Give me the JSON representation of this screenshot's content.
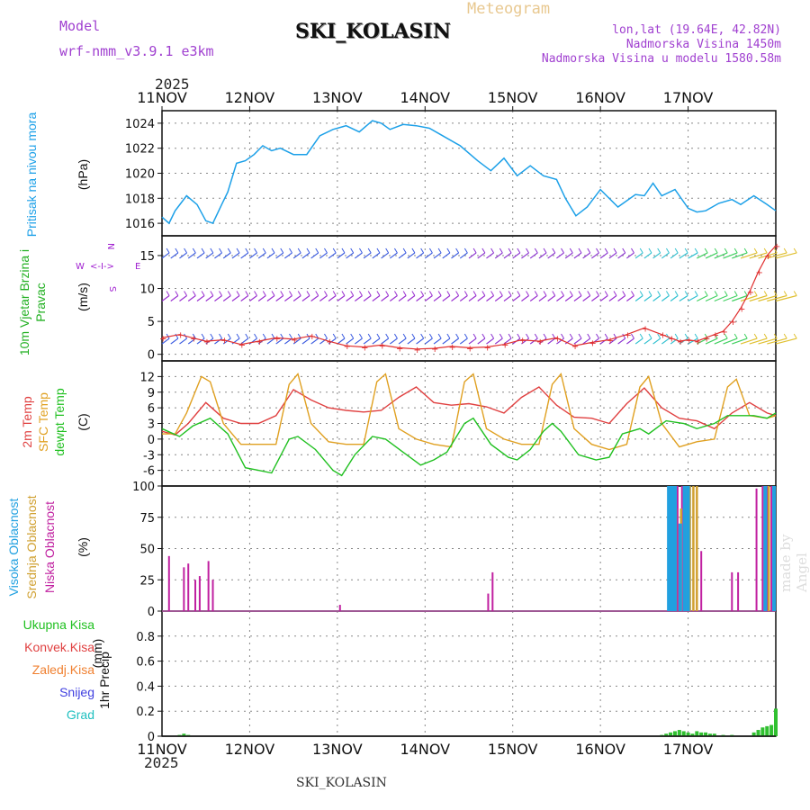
{
  "header": {
    "model_label": "Model",
    "model_name": "wrf-nmm_v3.9.1  e3km",
    "station": "SKI_KOLASIN",
    "meteogram": "Meteogram",
    "lonlat": "lon,lat (19.64E, 42.82N)",
    "elevation": "Nadmorska Visina 1450m",
    "model_elevation": "Nadmorska Visina u modelu 1580.58m",
    "year_top": "2025",
    "year_bottom": "2025",
    "footer_station": "SKI_KOLASIN",
    "credit": "made by Angel"
  },
  "colors": {
    "pressure": "#1ca0e8",
    "wind_purple": "#a020d0",
    "wind_red": "#e03030",
    "temp2m": "#e04040",
    "sfc": "#e0a020",
    "dewpt": "#20c020",
    "visoka": "#20a0e0",
    "srednja": "#d0a030",
    "niska": "#c020a0",
    "precip": "#30c030"
  },
  "chart_data": [
    {
      "type": "line",
      "panel": "pressure",
      "ylabel": "Pritisak na nivou mora",
      "units": "(hPa)",
      "ylim": [
        1015,
        1025
      ],
      "yticks": [
        1016,
        1018,
        1020,
        1022,
        1024
      ],
      "xticks": [
        "11NOV",
        "12NOV",
        "13NOV",
        "14NOV",
        "15NOV",
        "16NOV",
        "17NOV"
      ],
      "series": [
        {
          "name": "Pritisak na nivou mora",
          "x": [
            0,
            0.08,
            0.15,
            0.28,
            0.4,
            0.5,
            0.58,
            0.68,
            0.75,
            0.85,
            0.95,
            1.05,
            1.15,
            1.25,
            1.35,
            1.5,
            1.65,
            1.8,
            1.95,
            2.1,
            2.25,
            2.4,
            2.5,
            2.6,
            2.75,
            2.9,
            3.05,
            3.2,
            3.4,
            3.6,
            3.75,
            3.9,
            4.05,
            4.2,
            4.35,
            4.5,
            4.6,
            4.72,
            4.85,
            5.0,
            5.2,
            5.4,
            5.5,
            5.6,
            5.7,
            5.85,
            6.0,
            6.1,
            6.2,
            6.35,
            6.5,
            6.6,
            6.75,
            6.9,
            7.0
          ],
          "y": [
            1016.5,
            1016.0,
            1017.0,
            1018.2,
            1017.5,
            1016.2,
            1016.0,
            1017.5,
            1018.5,
            1020.8,
            1021.0,
            1021.5,
            1022.2,
            1021.8,
            1022.0,
            1021.5,
            1021.5,
            1023.0,
            1023.5,
            1023.8,
            1023.3,
            1024.2,
            1024.0,
            1023.5,
            1023.9,
            1023.8,
            1023.6,
            1023.0,
            1022.2,
            1021.0,
            1020.2,
            1021.2,
            1019.8,
            1020.6,
            1019.8,
            1019.5,
            1018.0,
            1016.6,
            1017.3,
            1018.7,
            1017.3,
            1018.3,
            1018.2,
            1019.2,
            1018.2,
            1018.7,
            1017.2,
            1016.9,
            1017.0,
            1017.6,
            1017.9,
            1017.5,
            1018.2,
            1017.5,
            1017.0
          ]
        }
      ]
    },
    {
      "type": "line",
      "panel": "wind",
      "ylabel": "10m Vjetar Brzina i Pravac",
      "units": "(m/s)",
      "ylim": [
        -1,
        18
      ],
      "yticks": [
        0,
        5,
        10,
        15
      ],
      "compass": {
        "n": "N",
        "s": "S",
        "w": "W",
        "e": "E",
        "arrow": "<-I->"
      },
      "barb_rows": [
        {
          "name": "upper",
          "level": 15
        },
        {
          "name": "middle",
          "level": 8.5
        },
        {
          "name": "lower",
          "level": 2
        }
      ],
      "series": [
        {
          "name": "wind speed",
          "x": [
            0,
            0.2,
            0.35,
            0.5,
            0.7,
            0.9,
            1.1,
            1.3,
            1.5,
            1.7,
            1.9,
            2.1,
            2.3,
            2.5,
            2.7,
            2.9,
            3.1,
            3.3,
            3.5,
            3.7,
            3.9,
            4.1,
            4.3,
            4.5,
            4.7,
            4.9,
            5.1,
            5.3,
            5.5,
            5.7,
            5.8,
            5.9,
            6.0,
            6.1,
            6.2,
            6.3,
            6.4,
            6.5,
            6.6,
            6.7,
            6.8,
            6.9,
            7.0
          ],
          "y": [
            2.5,
            3.0,
            2.5,
            2.0,
            2.2,
            1.5,
            2.0,
            2.5,
            2.3,
            2.8,
            2.0,
            1.3,
            1.1,
            1.4,
            1.0,
            0.8,
            0.9,
            1.2,
            1.0,
            1.1,
            1.5,
            2.2,
            2.0,
            2.5,
            1.3,
            1.8,
            2.2,
            3.0,
            4.0,
            3.0,
            2.5,
            2.0,
            2.2,
            2.0,
            2.5,
            3.0,
            3.5,
            5.0,
            7.0,
            9.5,
            12.5,
            15.0,
            16.5
          ]
        }
      ]
    },
    {
      "type": "line",
      "panel": "temperature",
      "ylabel_lines": [
        "2m Temp",
        "SFC Temp",
        "dewpt Temp"
      ],
      "units": "(C)",
      "ylim": [
        -9,
        15
      ],
      "yticks": [
        -6,
        -3,
        0,
        3,
        6,
        9,
        12
      ],
      "series": [
        {
          "name": "2m Temp",
          "x": [
            0,
            0.15,
            0.3,
            0.5,
            0.7,
            0.9,
            1.1,
            1.3,
            1.5,
            1.7,
            1.9,
            2.1,
            2.3,
            2.5,
            2.7,
            2.9,
            3.1,
            3.3,
            3.5,
            3.7,
            3.9,
            4.1,
            4.3,
            4.5,
            4.7,
            4.9,
            5.1,
            5.3,
            5.5,
            5.7,
            5.9,
            6.1,
            6.3,
            6.5,
            6.7,
            6.9,
            7.0
          ],
          "y": [
            1.5,
            0.8,
            3.0,
            7.0,
            4.0,
            3.0,
            3.0,
            4.5,
            9.5,
            7.5,
            6.0,
            5.5,
            5.2,
            5.5,
            8.0,
            10.0,
            7.0,
            6.5,
            6.8,
            6.2,
            5.0,
            8.0,
            10.0,
            6.5,
            4.2,
            4.0,
            3.0,
            6.8,
            9.8,
            6.0,
            4.0,
            3.5,
            2.0,
            5.0,
            7.0,
            5.0,
            4.5
          ]
        },
        {
          "name": "SFC Temp",
          "x": [
            0,
            0.15,
            0.28,
            0.45,
            0.55,
            0.7,
            0.9,
            1.1,
            1.3,
            1.45,
            1.55,
            1.7,
            1.9,
            2.1,
            2.3,
            2.45,
            2.55,
            2.7,
            2.9,
            3.1,
            3.3,
            3.45,
            3.55,
            3.7,
            3.9,
            4.1,
            4.3,
            4.45,
            4.55,
            4.7,
            4.9,
            5.1,
            5.3,
            5.45,
            5.55,
            5.7,
            5.9,
            6.1,
            6.3,
            6.45,
            6.55,
            6.7,
            6.9,
            7.0
          ],
          "y": [
            1.0,
            1.0,
            5.0,
            12.0,
            11.0,
            3.0,
            -1.0,
            -1.0,
            -1.0,
            10.5,
            12.5,
            3.0,
            -0.5,
            -1.0,
            -1.0,
            11.0,
            12.5,
            2.0,
            0.0,
            -1.0,
            -1.5,
            11.0,
            12.5,
            2.0,
            0.0,
            -1.0,
            -1.0,
            10.5,
            12.5,
            2.0,
            -1.0,
            -2.0,
            -1.0,
            10.0,
            12.0,
            3.0,
            -1.5,
            -0.5,
            0.0,
            10.0,
            11.5,
            4.5,
            4.0,
            4.5
          ]
        },
        {
          "name": "dewpt Temp",
          "x": [
            0,
            0.2,
            0.35,
            0.55,
            0.75,
            0.95,
            1.1,
            1.25,
            1.45,
            1.55,
            1.75,
            1.95,
            2.05,
            2.2,
            2.4,
            2.55,
            2.75,
            2.95,
            3.1,
            3.25,
            3.45,
            3.55,
            3.75,
            3.95,
            4.05,
            4.2,
            4.35,
            4.45,
            4.55,
            4.75,
            4.95,
            5.1,
            5.25,
            5.45,
            5.55,
            5.75,
            5.95,
            6.1,
            6.3,
            6.45,
            6.6,
            6.75,
            6.9,
            7.0
          ],
          "y": [
            2.0,
            0.5,
            2.5,
            4.0,
            1.0,
            -5.5,
            -6.0,
            -6.5,
            0.0,
            0.5,
            -2.0,
            -6.0,
            -7.0,
            -3.0,
            0.5,
            0.0,
            -2.5,
            -5.0,
            -4.0,
            -2.5,
            3.0,
            4.0,
            -1.0,
            -3.5,
            -4.0,
            -2.0,
            1.5,
            3.0,
            1.5,
            -3.0,
            -4.0,
            -3.5,
            1.0,
            2.0,
            1.0,
            3.5,
            3.0,
            2.0,
            3.0,
            4.5,
            4.5,
            4.5,
            4.0,
            5.0
          ]
        }
      ]
    },
    {
      "type": "bar",
      "panel": "cloud",
      "ylabel_lines": [
        "Visoka Oblacnost",
        "Srednja Oblacnost",
        "Niska Oblacnost"
      ],
      "units": "(%)",
      "ylim": [
        0,
        100
      ],
      "yticks": [
        0,
        25,
        50,
        75,
        100
      ],
      "series": [
        {
          "name": "Niska Oblacnost",
          "x": [
            0.08,
            0.25,
            0.3,
            0.38,
            0.43,
            0.53,
            0.58,
            2.03,
            3.72,
            3.77,
            5.88,
            5.93,
            5.98,
            6.02,
            6.1,
            6.15,
            6.5,
            6.57,
            6.78,
            6.85,
            6.9,
            6.95
          ],
          "values": [
            44,
            35,
            38,
            25,
            28,
            40,
            25,
            5,
            14,
            31,
            100,
            100,
            100,
            100,
            18,
            48,
            31,
            31,
            98,
            100,
            100,
            100
          ]
        },
        {
          "name": "Srednja Oblacnost",
          "x": [
            5.86,
            5.92,
            5.98,
            6.02,
            6.06,
            6.1,
            6.92
          ],
          "values": [
            82,
            82,
            100,
            100,
            100,
            100,
            100
          ]
        },
        {
          "name": "Visoka Oblacnost",
          "x": [
            5.78,
            5.81,
            5.85,
            5.91,
            5.96,
            6.0,
            6.88,
            6.98
          ],
          "values": [
            100,
            100,
            100,
            70,
            100,
            100,
            100,
            100
          ]
        }
      ]
    },
    {
      "type": "bar",
      "panel": "precip",
      "ylabel": "1hr Precip",
      "units": "(mm)",
      "ylim": [
        0,
        1.0
      ],
      "yticks": [
        0,
        0.2,
        0.4,
        0.6,
        0.8
      ],
      "legend": [
        "Ukupna Kisa",
        "Konvek.Kisa",
        "Zaledj.Kisa",
        "Snijeg",
        "Grad"
      ],
      "series": [
        {
          "name": "Ukupna Kisa",
          "x": [
            0.2,
            0.25,
            0.3,
            5.7,
            5.75,
            5.8,
            5.85,
            5.9,
            5.95,
            6.0,
            6.05,
            6.1,
            6.15,
            6.2,
            6.25,
            6.3,
            6.4,
            6.5,
            6.75,
            6.8,
            6.85,
            6.9,
            6.95,
            7.0
          ],
          "values": [
            0.01,
            0.02,
            0.01,
            0.01,
            0.02,
            0.03,
            0.04,
            0.05,
            0.04,
            0.03,
            0.02,
            0.04,
            0.03,
            0.03,
            0.02,
            0.02,
            0.01,
            0.01,
            0.03,
            0.05,
            0.07,
            0.08,
            0.09,
            0.22
          ]
        }
      ]
    }
  ]
}
